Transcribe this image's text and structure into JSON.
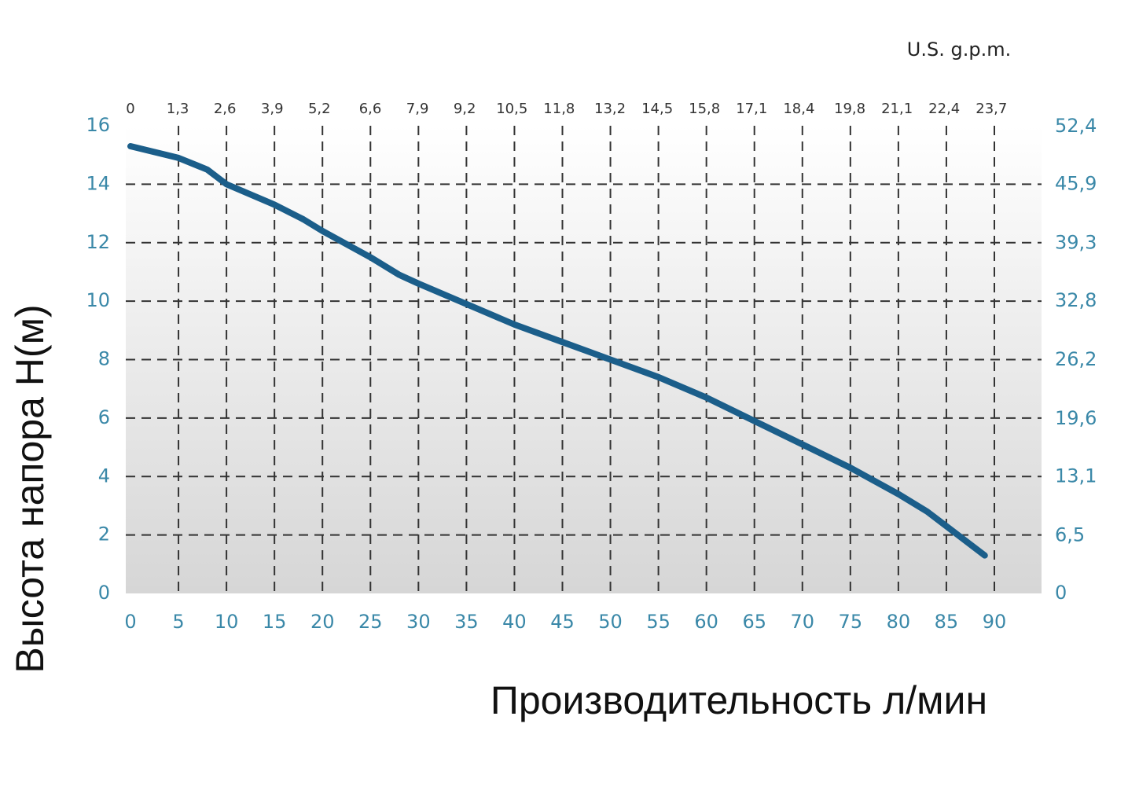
{
  "chart_data": {
    "type": "line",
    "x_label": "Производительность л/мин",
    "y_label": "Высота напора  H(м)",
    "x2_label": "U.S. g.p.m.",
    "x": [
      0,
      5,
      8,
      10,
      15,
      18,
      20,
      25,
      28,
      30,
      35,
      40,
      45,
      50,
      55,
      60,
      65,
      70,
      75,
      80,
      83,
      85,
      89
    ],
    "series": [
      {
        "color": "#1b5e8a",
        "values": [
          15.3,
          14.9,
          14.5,
          14.0,
          13.3,
          12.8,
          12.4,
          11.5,
          10.9,
          10.6,
          9.9,
          9.2,
          8.6,
          8.0,
          7.4,
          6.7,
          5.9,
          5.1,
          4.3,
          3.4,
          2.8,
          2.3,
          1.3
        ]
      }
    ],
    "xlim": [
      0,
      90
    ],
    "xticks": [
      0,
      5,
      10,
      15,
      20,
      25,
      30,
      35,
      40,
      45,
      50,
      55,
      60,
      65,
      70,
      75,
      80,
      85,
      90
    ],
    "ylim": [
      0,
      16
    ],
    "yticks": [
      0,
      2,
      4,
      6,
      8,
      10,
      12,
      14,
      16
    ],
    "x2lim": [
      0,
      23.78
    ],
    "x2ticks": [
      0,
      {
        "value": 1.3,
        "label": "1,3"
      },
      {
        "value": 2.6,
        "label": "2,6"
      },
      {
        "value": 3.9,
        "label": "3,9"
      },
      {
        "value": 5.2,
        "label": "5,2"
      },
      {
        "value": 6.6,
        "label": "6,6"
      },
      {
        "value": 7.9,
        "label": "7,9"
      },
      {
        "value": 9.2,
        "label": "9,2"
      },
      {
        "value": 10.5,
        "label": "10,5"
      },
      {
        "value": 11.8,
        "label": "11,8"
      },
      {
        "value": 13.2,
        "label": "13,2"
      },
      {
        "value": 14.5,
        "label": "14,5"
      },
      {
        "value": 15.8,
        "label": "15,8"
      },
      {
        "value": 17.1,
        "label": "17,1"
      },
      {
        "value": 18.4,
        "label": "18,4"
      },
      {
        "value": 19.8,
        "label": "19,8"
      },
      {
        "value": 21.1,
        "label": "21,1"
      },
      {
        "value": 22.4,
        "label": "22,4"
      },
      {
        "value": 23.7,
        "label": "23,7"
      }
    ],
    "y2lim": [
      0,
      52.49
    ],
    "y2ticks": [
      0,
      {
        "value": 6.5,
        "label": "6,5"
      },
      {
        "value": 13.1,
        "label": "13,1"
      },
      {
        "value": 19.6,
        "label": "19,6"
      },
      {
        "value": 26.2,
        "label": "26,2"
      },
      {
        "value": 32.8,
        "label": "32,8"
      },
      {
        "value": 39.3,
        "label": "39,3"
      },
      {
        "value": 45.9,
        "label": "45,9"
      },
      {
        "value": 52.4,
        "label": "52,4"
      }
    ],
    "grid": true,
    "tick_color": "#3a88a8"
  }
}
